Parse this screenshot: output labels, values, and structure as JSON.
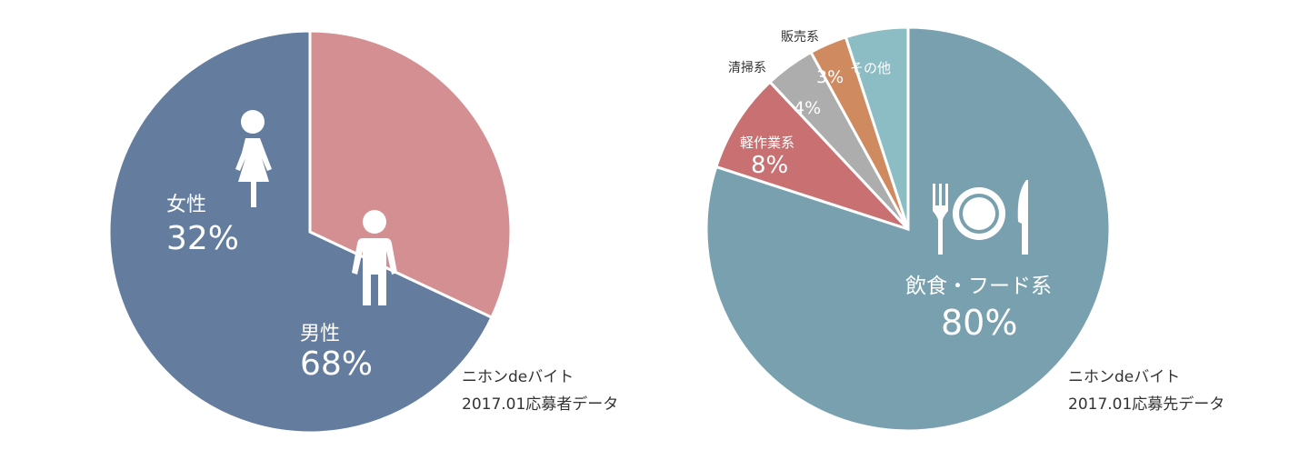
{
  "chart_data": [
    {
      "type": "pie",
      "title": "",
      "slices": [
        {
          "name": "男性",
          "value": 68,
          "label": "68%",
          "color": "#647d9f",
          "icon": "male-person-icon"
        },
        {
          "name": "女性",
          "value": 32,
          "label": "32%",
          "color": "#d48f92",
          "icon": "female-person-icon"
        }
      ],
      "source_lines": [
        "ニホンdeバイト",
        "2017.01応募者データ"
      ]
    },
    {
      "type": "pie",
      "title": "",
      "slices": [
        {
          "name": "飲食・フード系",
          "value": 80,
          "label": "80%",
          "color": "#79a0ae",
          "icon": "fork-plate-knife-icon"
        },
        {
          "name": "軽作業系",
          "value": 8,
          "label": "8%",
          "color": "#c97172"
        },
        {
          "name": "清掃系",
          "value": 4,
          "label": "4%",
          "color": "#adadad"
        },
        {
          "name": "販売系",
          "value": 3,
          "label": "3%",
          "color": "#d08a5f"
        },
        {
          "name": "その他",
          "value": 5,
          "label": "",
          "color": "#8cbcc4"
        }
      ],
      "source_lines": [
        "ニホンdeバイト",
        "2017.01応募先データ"
      ]
    }
  ]
}
